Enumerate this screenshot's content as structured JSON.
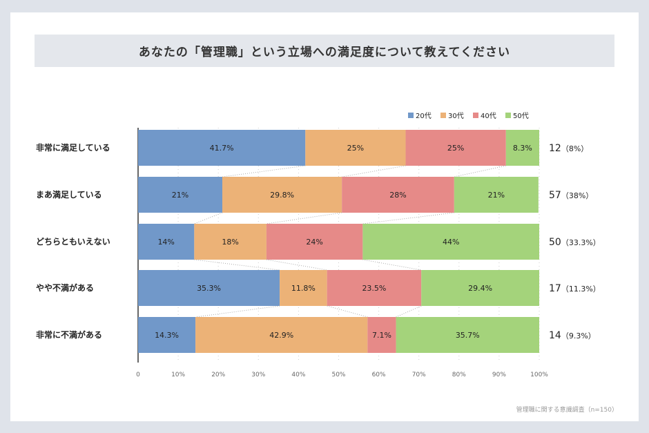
{
  "title": "あなたの「管理職」という立場への満足度について教えてください",
  "source": "管理職に関する意識調査（n=150）",
  "chart_data": {
    "type": "bar",
    "orientation": "horizontal-stacked-100",
    "categories": [
      "非常に満足している",
      "まあ満足している",
      "どちらともいえない",
      "やや不満がある",
      "非常に不満がある"
    ],
    "series": [
      {
        "name": "20代",
        "color": "#7198c9",
        "values": [
          41.7,
          21,
          14,
          35.3,
          14.3
        ],
        "labels": [
          "41.7%",
          "21%",
          "14%",
          "35.3%",
          "14.3%"
        ]
      },
      {
        "name": "30代",
        "color": "#ecb277",
        "values": [
          25,
          29.8,
          18,
          11.8,
          42.9
        ],
        "labels": [
          "25%",
          "29.8%",
          "18%",
          "11.8%",
          "42.9%"
        ]
      },
      {
        "name": "40代",
        "color": "#e68a88",
        "values": [
          25,
          28,
          24,
          23.5,
          7.1
        ],
        "labels": [
          "25%",
          "28%",
          "24%",
          "23.5%",
          "7.1%"
        ]
      },
      {
        "name": "50代",
        "color": "#a4d37b",
        "values": [
          8.3,
          21,
          44,
          29.4,
          35.7
        ],
        "labels": [
          "8.3%",
          "21%",
          "44%",
          "29.4%",
          "35.7%"
        ]
      }
    ],
    "totals": [
      {
        "count": "12",
        "pct": "（8%）"
      },
      {
        "count": "57",
        "pct": "（38%）"
      },
      {
        "count": "50",
        "pct": "（33.3%）"
      },
      {
        "count": "17",
        "pct": "（11.3%）"
      },
      {
        "count": "14",
        "pct": "（9.3%）"
      }
    ],
    "xticks": [
      "0",
      "10%",
      "20%",
      "30%",
      "40%",
      "50%",
      "60%",
      "70%",
      "80%",
      "90%",
      "100%"
    ],
    "xlim": [
      0,
      100
    ],
    "grid": true,
    "legend": "top-right"
  }
}
